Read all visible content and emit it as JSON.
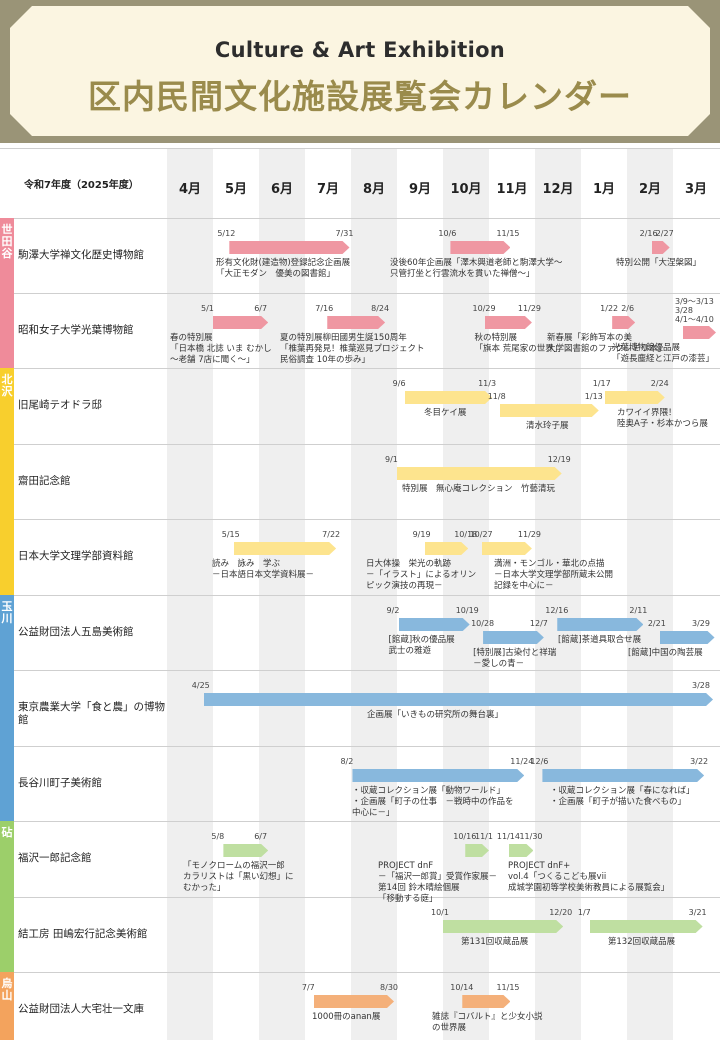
{
  "header": {
    "title_en": "Culture & Art Exhibition",
    "title_ja": "区内民間文化施設展覧会カレンダー"
  },
  "calendar": {
    "fiscal_year": "令和7年度（2025年度）",
    "months": [
      "4月",
      "5月",
      "6月",
      "7月",
      "8月",
      "9月",
      "10月",
      "11月",
      "12月",
      "1月",
      "2月",
      "3月"
    ]
  },
  "regions": [
    {
      "label": "世田谷",
      "color": "#ef8b9a"
    },
    {
      "label": "北沢",
      "color": "#f8cf2d"
    },
    {
      "label": "玉川",
      "color": "#5fa2d4"
    },
    {
      "label": "砧",
      "color": "#9ccf6a"
    },
    {
      "label": "烏山",
      "color": "#f3a35d"
    }
  ],
  "venues": [
    {
      "name": "駒澤大学禅文化歴史博物館"
    },
    {
      "name": "昭和女子大学光葉博物館"
    },
    {
      "name": "旧尾崎テオドラ邸"
    },
    {
      "name": "齋田記念館"
    },
    {
      "name": "日本大学文理学部資料館"
    },
    {
      "name": "公益財団法人五島美術館"
    },
    {
      "name": "東京農業大学「食と農」の博物館"
    },
    {
      "name": "長谷川町子美術館"
    },
    {
      "name": "福沢一郎記念館"
    },
    {
      "name": "結工房 田嶋宏行記念美術館"
    },
    {
      "name": "公益財団法人大宅壮一文庫"
    }
  ],
  "exhibitions": [
    {
      "row": 0,
      "color": "pink",
      "start": "5/12",
      "end": "7/31",
      "title": "形有文化財(建造物)登録記念企画展\n「大正モダン　優美の図書館」"
    },
    {
      "row": 0,
      "color": "pink",
      "start": "10/6",
      "end": "11/15",
      "title": "没後60年企画展「澤木興道老師と駒澤大学～\n只管打坐と行雲流水を貫いた禅僧～」"
    },
    {
      "row": 0,
      "color": "pink",
      "start": "2/16",
      "end": "2/27",
      "title": "特別公開「大涅槃図」"
    },
    {
      "row": 1,
      "color": "pink",
      "start": "5/1",
      "end": "6/7",
      "title": "春の特別展\n「日本橋 北誌 いま むかし\n～老舗 7店に聞く～」"
    },
    {
      "row": 1,
      "color": "pink",
      "start": "7/16",
      "end": "8/24",
      "title": "夏の特別展柳田國男生誕150周年\n「椎葉再発見！椎葉巡見プロジェクト\n民俗調査 10年の歩み」"
    },
    {
      "row": 1,
      "color": "pink",
      "start": "10/29",
      "end": "11/29",
      "title": "秋の特別展\n「旗本 荒尾家の世界」"
    },
    {
      "row": 1,
      "color": "pink",
      "start": "1/22",
      "end": "2/6",
      "title": "新春展「彩飾写本の美\n大学図書館のファクシミリ本」"
    },
    {
      "row": 1,
      "color": "pink",
      "start": "3/9～3/13\n3/28\n4/1～4/10",
      "end": "",
      "title": "光葉博物館優品展\n「遊長塵経と江戸の漆芸」"
    },
    {
      "row": 2,
      "color": "yellow",
      "start": "9/6",
      "end": "11/3",
      "title": "冬目ケイ展"
    },
    {
      "row": 2,
      "color": "yellow",
      "start": "11/8",
      "end": "1/13",
      "title": "清水玲子展"
    },
    {
      "row": 2,
      "color": "yellow",
      "start": "1/17",
      "end": "2/24",
      "title": "カワイイ界隈！\n陸奥A子・杉本かつら展"
    },
    {
      "row": 3,
      "color": "yellow",
      "start": "9/1",
      "end": "12/19",
      "title": "特別展　無心庵コレクション　竹藝清玩"
    },
    {
      "row": 4,
      "color": "yellow",
      "start": "5/15",
      "end": "7/22",
      "title": "読み　詠み　学ぶ\n－日本語日本文学資料展－"
    },
    {
      "row": 4,
      "color": "yellow",
      "start": "9/19",
      "end": "10/18",
      "title": "日大体操　栄光の軌跡\n－「イラスト」によるオリン\nピック演技の再現－"
    },
    {
      "row": 4,
      "color": "yellow",
      "start": "10/27",
      "end": "11/29",
      "title": "満洲・モンゴル・華北の点描\n－日本大学文理学部所蔵未公開\n記録を中心に－"
    },
    {
      "row": 5,
      "color": "blue",
      "start": "9/2",
      "end": "10/19",
      "title": "[館蔵]秋の優品展\n武士の雅遊"
    },
    {
      "row": 5,
      "color": "blue",
      "start": "10/28",
      "end": "12/7",
      "title": "[特別展]古染付と祥瑞\n－愛しの青－"
    },
    {
      "row": 5,
      "color": "blue",
      "start": "12/16",
      "end": "2/11",
      "title": "[館蔵]茶道具取合せ展"
    },
    {
      "row": 5,
      "color": "blue",
      "start": "2/21",
      "end": "3/29",
      "title": "[館蔵]中国の陶芸展"
    },
    {
      "row": 6,
      "color": "blue",
      "start": "4/25",
      "end": "3/28",
      "title": "企画展「いきもの研究所の舞台裏」"
    },
    {
      "row": 7,
      "color": "blue",
      "start": "8/2",
      "end": "11/24",
      "title": "・収蔵コレクション展「動物ワールド」\n・企画展「町子の仕事　－戦時中の作品を\n中心に－」"
    },
    {
      "row": 7,
      "color": "blue",
      "start": "12/6",
      "end": "3/22",
      "title": "・収蔵コレクション展「春になれば」\n・企画展「町子が描いた食べもの」"
    },
    {
      "row": 8,
      "color": "green",
      "start": "5/8",
      "end": "6/7",
      "title": "「モノクロームの福沢一郎\nカラリストは「黒い幻想」に\nむかった」"
    },
    {
      "row": 8,
      "color": "green",
      "start": "10/16",
      "end": "11/1",
      "title": "PROJECT dnF\n－「福沢一郎賞」受賞作家展－\n第14回 鈴木晴絵個展\n「移動する庭」"
    },
    {
      "row": 8,
      "color": "green",
      "start": "11/14",
      "end": "11/30",
      "title": "PROJECT dnF+\nvol.4「つくるこども展vii\n成城学園初等学校美術教員による展覧会」"
    },
    {
      "row": 9,
      "color": "green",
      "start": "10/1",
      "end": "12/20",
      "title": "第131回収蔵品展"
    },
    {
      "row": 9,
      "color": "green",
      "start": "1/7",
      "end": "3/21",
      "title": "第132回収蔵品展"
    },
    {
      "row": 10,
      "color": "orange",
      "start": "7/7",
      "end": "8/30",
      "title": "1000冊のanan展"
    },
    {
      "row": 10,
      "color": "orange",
      "start": "10/14",
      "end": "11/15",
      "title": "雑誌『コバルト』と少女小説\nの世界展"
    }
  ]
}
